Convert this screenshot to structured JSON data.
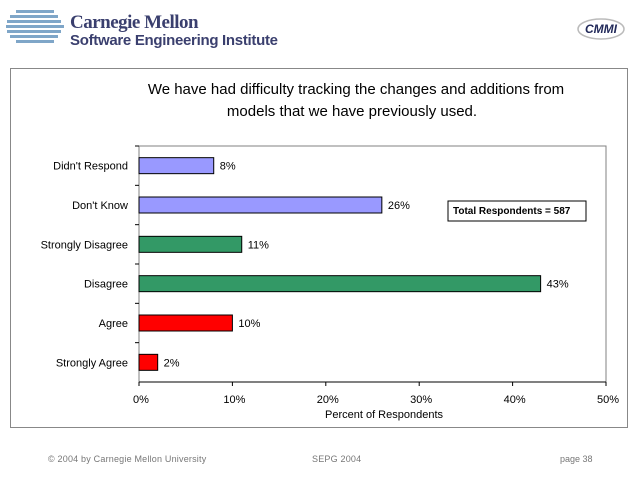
{
  "header": {
    "org_line1": "Carnegie Mellon",
    "org_line2": "Software Engineering Institute",
    "logo_right": "CMMI"
  },
  "chart_data": {
    "type": "bar",
    "orientation": "horizontal",
    "title_lines": [
      "We have had difficulty tracking the changes and additions from",
      "models that we have previously used."
    ],
    "categories": [
      "Didn't Respond",
      "Don't Know",
      "Strongly Disagree",
      "Disagree",
      "Agree",
      "Strongly Agree"
    ],
    "values": [
      8,
      26,
      11,
      43,
      10,
      2
    ],
    "value_labels": [
      "8%",
      "26%",
      "11%",
      "43%",
      "10%",
      "2%"
    ],
    "colors": [
      "#9999ff",
      "#9999ff",
      "#339966",
      "#339966",
      "#ff0000",
      "#ff0000"
    ],
    "xlabel": "Percent of Respondents",
    "xlim": [
      0,
      50
    ],
    "xticks": [
      0,
      10,
      20,
      30,
      40,
      50
    ],
    "xtick_labels": [
      "0%",
      "10%",
      "20%",
      "30%",
      "40%",
      "50%"
    ],
    "annotation": "Total Respondents = 587",
    "grid": false
  },
  "footer": {
    "copyright": "© 2004 by Carnegie Mellon University",
    "conference": "SEPG 2004",
    "page": "page 38"
  }
}
